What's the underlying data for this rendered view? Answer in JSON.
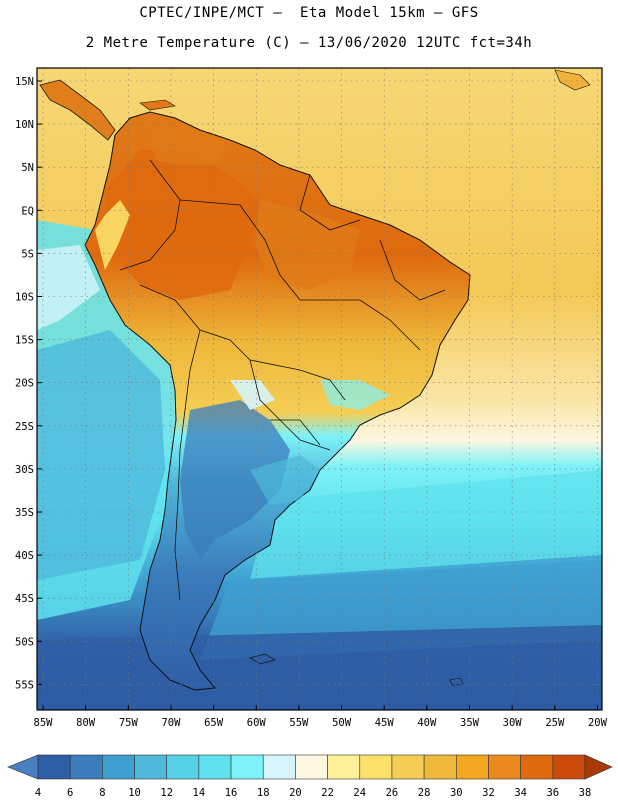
{
  "header": {
    "line1": "CPTEC/INPE/MCT –  Eta Model 15km – GFS",
    "line2": "2 Metre Temperature (C) – 13/06/2020 12UTC fct=34h"
  },
  "axes": {
    "lat_labels": [
      "15N",
      "10N",
      "5N",
      "EQ",
      "5S",
      "10S",
      "15S",
      "20S",
      "25S",
      "30S",
      "35S",
      "40S",
      "45S",
      "50S",
      "55S"
    ],
    "lon_labels": [
      "85W",
      "80W",
      "75W",
      "70W",
      "65W",
      "60W",
      "55W",
      "50W",
      "45W",
      "40W",
      "35W",
      "30W",
      "25W",
      "20W"
    ]
  },
  "colorbar": {
    "labels": [
      "4",
      "6",
      "8",
      "10",
      "12",
      "14",
      "16",
      "18",
      "20",
      "22",
      "24",
      "26",
      "28",
      "30",
      "32",
      "34",
      "36",
      "38"
    ],
    "colors": [
      "#4a7fbf",
      "#2f5ea6",
      "#3a7cbc",
      "#3f9fd0",
      "#4fb9dc",
      "#57d1e6",
      "#5fe2ee",
      "#7ff2f8",
      "#d6f4fb",
      "#fdf7e1",
      "#fdf19a",
      "#fbe06a",
      "#f5cd55",
      "#eeb83a",
      "#f3a61f",
      "#ea8a1e",
      "#df6a0e",
      "#c94a0a",
      "#a83a08"
    ]
  },
  "map_colors": {
    "ocean_north": "#f7d775",
    "ocean_mid": "#fbe6a8",
    "ocean_cool": "#5fe2ee",
    "ocean_cold": "#3f9fd0",
    "ocean_south": "#2f5ea6",
    "land_hot": "#e07a18",
    "land_warm": "#f0b23a",
    "land_mild": "#f7d775",
    "land_cool": "#4fb9dc",
    "land_cold": "#3a7cbc",
    "border_color": "#111111"
  }
}
